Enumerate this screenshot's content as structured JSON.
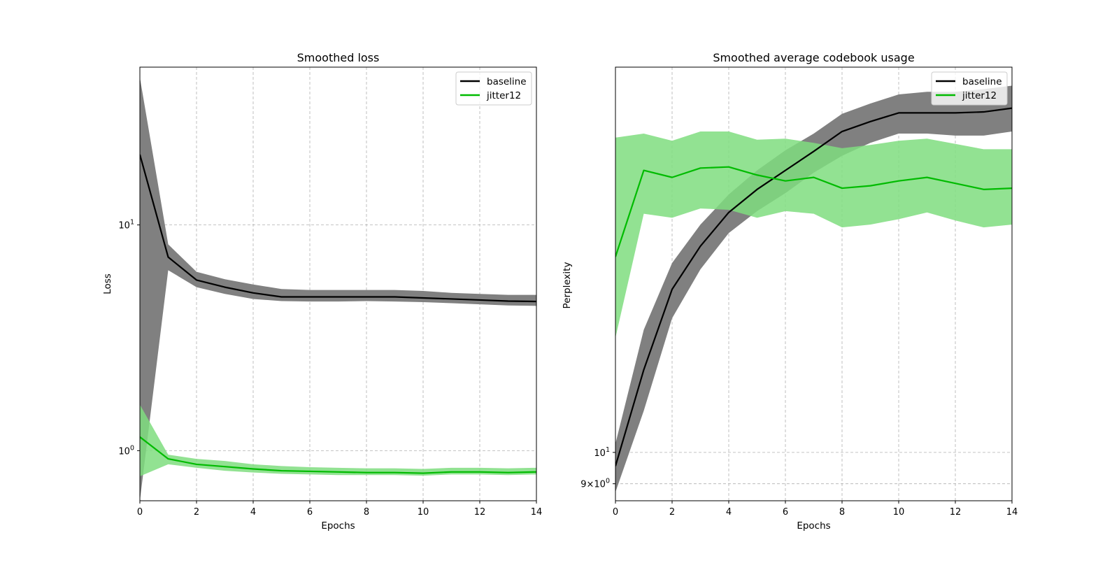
{
  "chart_data": [
    {
      "type": "line",
      "title": "Smoothed loss",
      "xlabel": "Epochs",
      "ylabel": "Loss",
      "yscale": "log",
      "xlim": [
        0,
        14
      ],
      "ylim": [
        0.6,
        50
      ],
      "x_ticks": [
        0,
        2,
        4,
        6,
        8,
        10,
        12,
        14
      ],
      "x_tick_labels": [
        "0",
        "2",
        "4",
        "6",
        "8",
        "10",
        "12",
        "14"
      ],
      "y_ticks": [
        {
          "value": 10,
          "base": "10",
          "exp": "1"
        },
        {
          "value": 1,
          "base": "10",
          "exp": "0"
        }
      ],
      "grid": true,
      "legend_position": "upper right",
      "x": [
        0,
        1,
        2,
        3,
        4,
        5,
        6,
        7,
        8,
        9,
        10,
        11,
        12,
        13,
        14
      ],
      "series": [
        {
          "name": "baseline",
          "color": "#000000",
          "band_color": "#808080",
          "values": [
            20.5,
            7.2,
            5.7,
            5.3,
            5.0,
            4.8,
            4.8,
            4.8,
            4.8,
            4.8,
            4.75,
            4.7,
            4.65,
            4.6,
            4.58
          ],
          "lower": [
            0.6,
            6.3,
            5.3,
            4.95,
            4.7,
            4.6,
            4.58,
            4.58,
            4.6,
            4.58,
            4.55,
            4.5,
            4.45,
            4.4,
            4.38
          ],
          "upper": [
            45.0,
            8.2,
            6.2,
            5.75,
            5.45,
            5.2,
            5.15,
            5.15,
            5.15,
            5.15,
            5.1,
            5.0,
            4.95,
            4.9,
            4.9
          ]
        },
        {
          "name": "jitter12",
          "color": "#00bb00",
          "band_color": "#7fdd7f",
          "values": [
            1.15,
            0.92,
            0.87,
            0.85,
            0.83,
            0.815,
            0.81,
            0.805,
            0.8,
            0.8,
            0.795,
            0.805,
            0.805,
            0.8,
            0.805
          ],
          "lower": [
            0.77,
            0.87,
            0.84,
            0.815,
            0.8,
            0.79,
            0.785,
            0.78,
            0.78,
            0.78,
            0.775,
            0.785,
            0.785,
            0.78,
            0.785
          ],
          "upper": [
            1.6,
            0.96,
            0.92,
            0.9,
            0.87,
            0.855,
            0.845,
            0.84,
            0.835,
            0.835,
            0.83,
            0.84,
            0.84,
            0.835,
            0.84
          ]
        }
      ]
    },
    {
      "type": "line",
      "title": "Smoothed average codebook usage",
      "xlabel": "Epochs",
      "ylabel": "Perplexity",
      "yscale": "log",
      "xlim": [
        0,
        14
      ],
      "ylim": [
        8.5,
        36.5
      ],
      "x_ticks": [
        0,
        2,
        4,
        6,
        8,
        10,
        12,
        14
      ],
      "x_tick_labels": [
        "0",
        "2",
        "4",
        "6",
        "8",
        "10",
        "12",
        "14"
      ],
      "y_ticks": [
        {
          "value": 10,
          "base": "10",
          "exp": "1",
          "prefix": ""
        },
        {
          "value": 9,
          "base": "10",
          "exp": "0",
          "prefix": "9×"
        }
      ],
      "grid": true,
      "legend_position": "upper right",
      "x": [
        0,
        1,
        2,
        3,
        4,
        5,
        6,
        7,
        8,
        9,
        10,
        11,
        12,
        13,
        14
      ],
      "series": [
        {
          "name": "baseline",
          "color": "#000000",
          "band_color": "#808080",
          "values": [
            9.55,
            13.2,
            17.3,
            20.0,
            22.4,
            24.2,
            25.8,
            27.5,
            29.4,
            30.4,
            31.3,
            31.3,
            31.3,
            31.4,
            31.8
          ],
          "lower": [
            8.75,
            11.5,
            15.7,
            18.5,
            20.9,
            22.5,
            23.9,
            25.6,
            27.1,
            28.3,
            29.2,
            29.2,
            29.0,
            29.0,
            29.4
          ],
          "upper": [
            10.3,
            15.1,
            18.9,
            21.5,
            23.8,
            25.8,
            27.6,
            29.2,
            31.2,
            32.3,
            33.3,
            33.6,
            33.6,
            33.9,
            34.3
          ]
        },
        {
          "name": "jitter12",
          "color": "#00bb00",
          "band_color": "#7fdd7f",
          "values": [
            19.3,
            25.8,
            25.2,
            26.0,
            26.1,
            25.4,
            24.9,
            25.2,
            24.3,
            24.5,
            24.9,
            25.2,
            24.7,
            24.2,
            24.3
          ],
          "lower": [
            14.7,
            22.3,
            22.0,
            22.7,
            22.6,
            22.0,
            22.5,
            22.3,
            21.3,
            21.5,
            21.9,
            22.4,
            21.8,
            21.3,
            21.5
          ],
          "upper": [
            28.8,
            29.2,
            28.5,
            29.4,
            29.4,
            28.6,
            28.7,
            28.3,
            27.8,
            28.1,
            28.5,
            28.7,
            28.2,
            27.7,
            27.7
          ]
        }
      ]
    }
  ]
}
